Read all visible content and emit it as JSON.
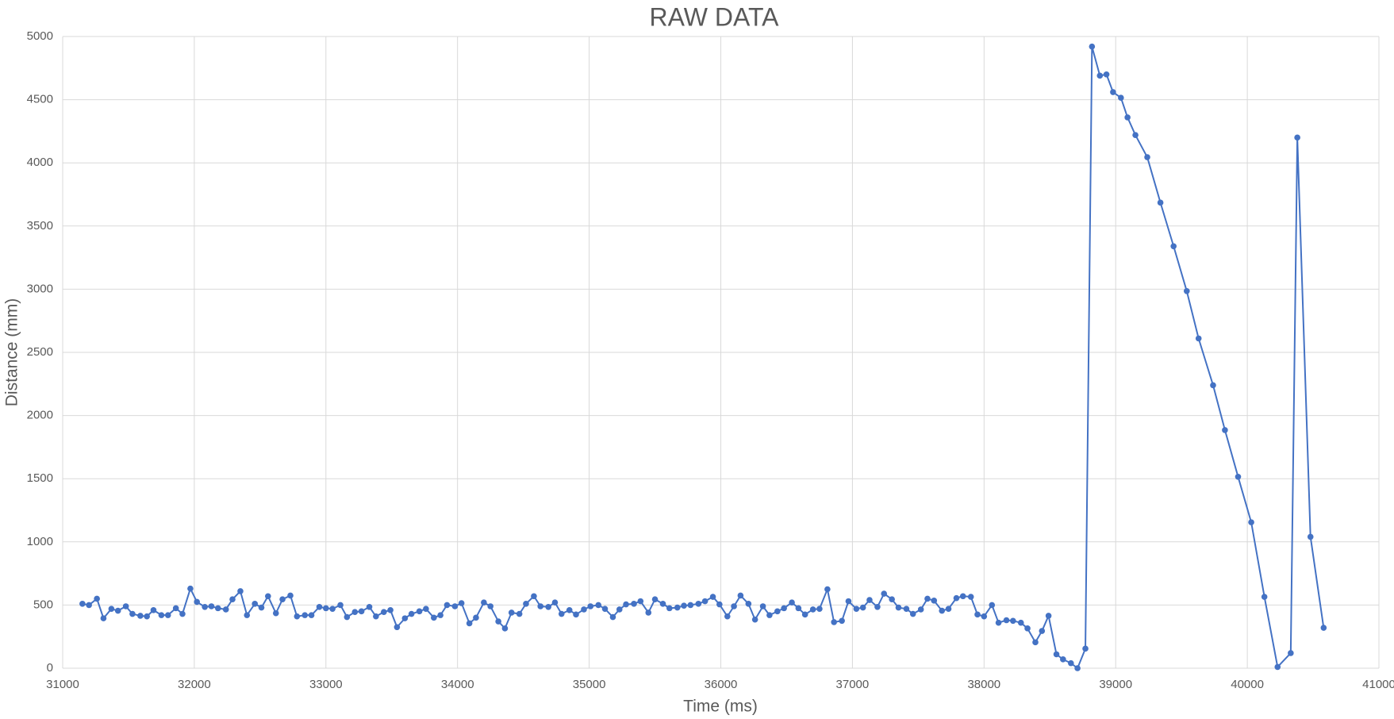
{
  "chart_data": {
    "type": "line",
    "title": "RAW DATA",
    "x_label": "Time (ms)",
    "y_label": "Distance (mm)",
    "x": [
      31150,
      31200,
      31260,
      31310,
      31370,
      31420,
      31480,
      31530,
      31590,
      31640,
      31690,
      31750,
      31800,
      31860,
      31910,
      31970,
      32020,
      32080,
      32130,
      32180,
      32240,
      32290,
      32350,
      32400,
      32460,
      32510,
      32560,
      32620,
      32670,
      32730,
      32780,
      32840,
      32890,
      32950,
      33000,
      33050,
      33110,
      33160,
      33220,
      33270,
      33330,
      33380,
      33440,
      33490,
      33540,
      33600,
      33650,
      33710,
      33760,
      33820,
      33870,
      33920,
      33980,
      34030,
      34090,
      34140,
      34200,
      34250,
      34310,
      34360,
      34410,
      34470,
      34520,
      34580,
      34630,
      34690,
      34740,
      34790,
      34850,
      34900,
      34960,
      35010,
      35070,
      35120,
      35180,
      35230,
      35280,
      35340,
      35390,
      35450,
      35500,
      35560,
      35610,
      35670,
      35720,
      35770,
      35830,
      35880,
      35940,
      35990,
      36050,
      36100,
      36150,
      36210,
      36260,
      36320,
      36370,
      36430,
      36480,
      36540,
      36590,
      36640,
      36700,
      36750,
      36810,
      36860,
      36920,
      36970,
      37030,
      37080,
      37130,
      37190,
      37240,
      37300,
      37350,
      37410,
      37460,
      37520,
      37570,
      37620,
      37680,
      37730,
      37790,
      37840,
      37900,
      37950,
      38000,
      38060,
      38110,
      38170,
      38220,
      38280,
      38330,
      38390,
      38440,
      38490,
      38550,
      38600,
      38660,
      38710,
      38770,
      38820,
      38880,
      38930,
      38980,
      39040,
      39090,
      39150,
      39240,
      39340,
      39440,
      39540,
      39630,
      39740,
      39830,
      39930,
      40030,
      40130,
      40230,
      40330,
      40380,
      40480,
      40580
    ],
    "values": [
      510,
      500,
      550,
      395,
      470,
      455,
      490,
      430,
      415,
      410,
      460,
      420,
      420,
      475,
      430,
      630,
      525,
      485,
      490,
      475,
      465,
      545,
      610,
      420,
      510,
      480,
      570,
      435,
      545,
      575,
      410,
      420,
      420,
      485,
      475,
      470,
      500,
      405,
      445,
      450,
      485,
      410,
      445,
      460,
      325,
      395,
      430,
      450,
      470,
      400,
      420,
      500,
      490,
      515,
      355,
      400,
      520,
      490,
      370,
      315,
      440,
      430,
      510,
      570,
      490,
      485,
      520,
      430,
      460,
      425,
      465,
      490,
      500,
      470,
      405,
      465,
      505,
      510,
      530,
      440,
      545,
      510,
      475,
      480,
      495,
      500,
      510,
      530,
      565,
      505,
      410,
      490,
      575,
      510,
      385,
      490,
      420,
      450,
      475,
      520,
      475,
      425,
      465,
      470,
      625,
      365,
      375,
      530,
      470,
      480,
      540,
      485,
      590,
      545,
      480,
      470,
      430,
      465,
      550,
      535,
      455,
      470,
      555,
      570,
      565,
      425,
      410,
      500,
      360,
      380,
      375,
      360,
      315,
      205,
      295,
      415,
      110,
      70,
      40,
      0,
      155,
      4920,
      4690,
      4700,
      4560,
      4515,
      4360,
      4220,
      4045,
      3685,
      3340,
      2985,
      2610,
      2240,
      1885,
      1515,
      1155,
      565,
      10,
      120,
      4200,
      1040,
      320
    ],
    "color": "#4472c4",
    "xlim": [
      31000,
      41000
    ],
    "xticks": [
      31000,
      32000,
      33000,
      34000,
      35000,
      36000,
      37000,
      38000,
      39000,
      40000,
      41000
    ],
    "ylim": [
      0,
      5000
    ],
    "yticks": [
      0,
      500,
      1000,
      1500,
      2000,
      2500,
      3000,
      3500,
      4000,
      4500,
      5000
    ],
    "grid": true
  }
}
